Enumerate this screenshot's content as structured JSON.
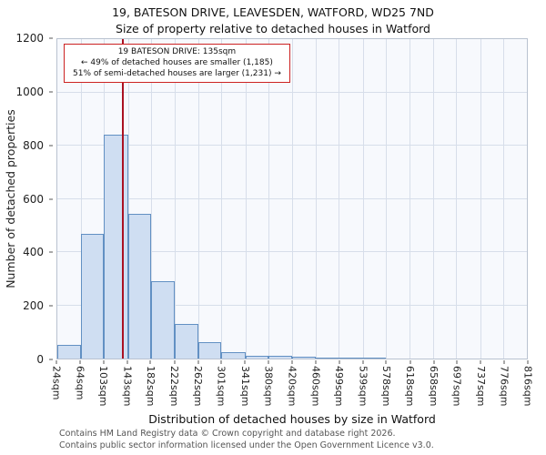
{
  "title": "19, BATESON DRIVE, LEAVESDEN, WATFORD, WD25 7ND",
  "subtitle": "Size of property relative to detached houses in Watford",
  "annotation": {
    "line1": "19 BATESON DRIVE: 135sqm",
    "line2": "← 49% of detached houses are smaller (1,185)",
    "line3": "51% of semi-detached houses are larger (1,231) →"
  },
  "chart_data": {
    "type": "bar",
    "title": "Size of property relative to detached houses in Watford",
    "xlabel": "Distribution of detached houses by size in Watford",
    "ylabel": "Number of detached properties",
    "bin_edges_sqm": [
      24,
      64,
      103,
      143,
      182,
      222,
      262,
      301,
      341,
      380,
      420,
      460,
      499,
      539,
      578,
      618,
      658,
      697,
      737,
      776,
      816
    ],
    "values": [
      50,
      470,
      840,
      545,
      290,
      130,
      60,
      25,
      10,
      12,
      6,
      5,
      4,
      2,
      0,
      0,
      0,
      0,
      0,
      0
    ],
    "tick_suffix": "sqm",
    "marker_value_sqm": 135,
    "ylim": [
      0,
      1200
    ],
    "yticks": [
      0,
      200,
      400,
      600,
      800,
      1000,
      1200
    ],
    "grid": true,
    "legend": "none",
    "bar_fill": "#cfdef2",
    "bar_edge": "#6290c3",
    "marker_color": "#aa1122",
    "annotation_border": "#cc2222"
  },
  "footer": {
    "line1": "Contains HM Land Registry data © Crown copyright and database right 2026.",
    "line2": "Contains public sector information licensed under the Open Government Licence v3.0."
  }
}
